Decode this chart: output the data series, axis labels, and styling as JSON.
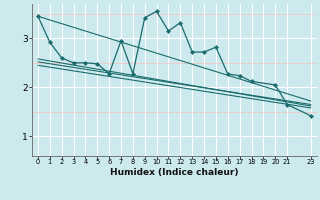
{
  "title": "",
  "xlabel": "Humidex (Indice chaleur)",
  "bg_color": "#cce9ee",
  "line_color": "#1a6b6b",
  "grid_color": "#ffffff",
  "grid_minor_color": "#f0c8c8",
  "xlim": [
    -0.5,
    23.5
  ],
  "ylim": [
    0.6,
    3.7
  ],
  "yticks": [
    1,
    2,
    3
  ],
  "xticks": [
    0,
    1,
    2,
    3,
    4,
    5,
    6,
    7,
    8,
    9,
    10,
    11,
    12,
    13,
    14,
    15,
    16,
    17,
    18,
    19,
    20,
    21,
    23
  ],
  "series_main": {
    "x": [
      0,
      1,
      2,
      3,
      4,
      5,
      6,
      7,
      8,
      9,
      10,
      11,
      12,
      13,
      14,
      15,
      16,
      17,
      18,
      20,
      21,
      23
    ],
    "y": [
      3.45,
      2.92,
      2.6,
      2.5,
      2.5,
      2.48,
      2.28,
      2.95,
      2.28,
      3.42,
      3.55,
      3.15,
      3.32,
      2.72,
      2.72,
      2.82,
      2.27,
      2.24,
      2.12,
      2.05,
      1.65,
      1.42
    ]
  },
  "series_upper": {
    "x": [
      0,
      23
    ],
    "y": [
      3.45,
      1.72
    ]
  },
  "series_lower": {
    "x": [
      0,
      23
    ],
    "y": [
      2.45,
      1.58
    ]
  },
  "series_mid1": {
    "x": [
      0,
      23
    ],
    "y": [
      2.58,
      1.62
    ]
  },
  "series_mid2": {
    "x": [
      0,
      23
    ],
    "y": [
      2.52,
      1.65
    ]
  }
}
